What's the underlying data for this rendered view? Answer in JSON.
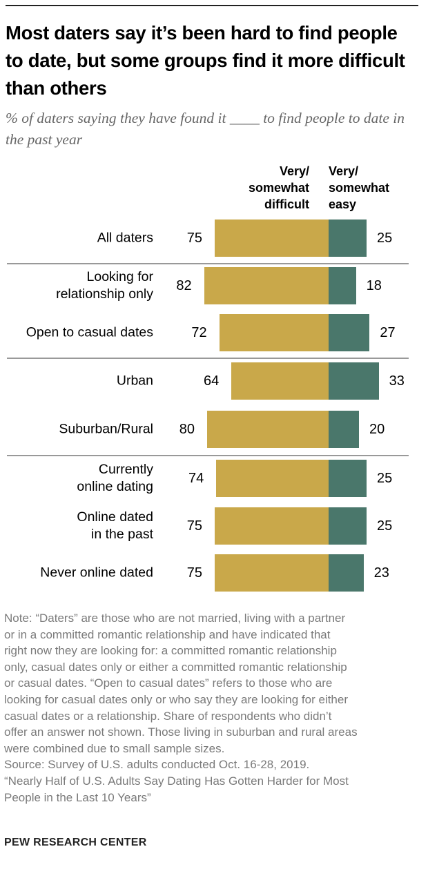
{
  "title": "Most daters say it’s been hard to find people to date, but some groups find it more difficult than others",
  "subtitle": "% of daters saying they have found it ____ to find people to date in the past year",
  "colors": {
    "difficult": "#C9A84A",
    "easy": "#4A776B",
    "separator": "#999999"
  },
  "chart_data": {
    "type": "bar",
    "orientation": "horizontal-diverging",
    "series": [
      {
        "name": "Very/ somewhat difficult",
        "values": [
          75,
          82,
          72,
          64,
          80,
          74,
          75,
          75
        ]
      },
      {
        "name": "Very/ somewhat easy",
        "values": [
          25,
          18,
          27,
          33,
          20,
          25,
          25,
          23
        ]
      }
    ],
    "categories": [
      "All daters",
      "Looking for relationship only",
      "Open to casual dates",
      "Urban",
      "Suburban/Rural",
      "Currently online dating",
      "Online dated in the past",
      "Never online dated"
    ],
    "category_lines": [
      [
        "All daters"
      ],
      [
        "Looking for",
        "relationship only"
      ],
      [
        "Open to casual dates"
      ],
      [
        "Urban"
      ],
      [
        "Suburban/Rural"
      ],
      [
        "Currently",
        "online dating"
      ],
      [
        "Online dated",
        "in the past"
      ],
      [
        "Never online dated"
      ]
    ],
    "group_breaks_after": [
      0,
      2,
      4
    ],
    "column_headers": {
      "difficult": [
        "Very/",
        "somewhat",
        "difficult"
      ],
      "easy": [
        "Very/",
        "somewhat",
        "easy"
      ]
    },
    "unit": "%"
  },
  "note_lines": [
    "Note: “Daters” are those who are not married, living with a partner",
    "or in a committed romantic relationship and have indicated that",
    "right now they are looking for: a committed romantic relationship",
    "only, casual dates only or either a committed romantic relationship",
    "or casual dates. “Open to casual dates” refers to those who are",
    "looking for casual dates only or who say they are looking for either",
    "casual dates or a relationship. Share of respondents who didn’t",
    "offer an answer not shown. Those living in suburban and rural areas",
    "were combined due to small sample sizes.",
    "Source: Survey of U.S. adults conducted Oct. 16-28, 2019.",
    "“Nearly Half of U.S. Adults Say Dating Has Gotten Harder for Most",
    "People in the Last 10 Years”"
  ],
  "footer": "PEW RESEARCH CENTER"
}
